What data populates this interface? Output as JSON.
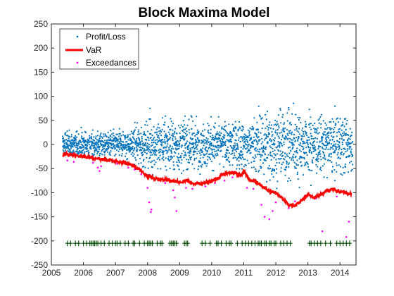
{
  "chart_data": {
    "type": "scatter",
    "title": "Block Maxima Model",
    "xlabel": "",
    "ylabel": "",
    "xlim": [
      2005,
      2014.5
    ],
    "ylim": [
      -250,
      250
    ],
    "x_ticks": [
      "2005",
      "2006",
      "2007",
      "2008",
      "2009",
      "2010",
      "2011",
      "2012",
      "2013",
      "2014"
    ],
    "y_ticks": [
      "250",
      "200",
      "150",
      "100",
      "50",
      "0",
      "-50",
      "-100",
      "-150",
      "-200",
      "-250"
    ],
    "grid": false,
    "legend_position": "top-left",
    "legend": [
      "Profit/Loss",
      "VaR",
      "Exceedances"
    ],
    "colors": {
      "profit_loss": "#0072bd",
      "var": "#ff0000",
      "exceedances": "#ff00ff",
      "exceedance_markers": "#004d00"
    },
    "series": [
      {
        "name": "VaR",
        "type": "line",
        "x": [
          2005.35,
          2005.5,
          2005.7,
          2005.9,
          2006.1,
          2006.3,
          2006.5,
          2006.7,
          2006.9,
          2007.1,
          2007.3,
          2007.5,
          2007.7,
          2007.85,
          2008.0,
          2008.2,
          2008.4,
          2008.6,
          2008.8,
          2009.0,
          2009.2,
          2009.4,
          2009.6,
          2009.8,
          2010.0,
          2010.2,
          2010.3,
          2010.5,
          2010.7,
          2010.9,
          2011.0,
          2011.2,
          2011.4,
          2011.6,
          2011.8,
          2012.0,
          2012.2,
          2012.4,
          2012.6,
          2012.8,
          2013.0,
          2013.2,
          2013.4,
          2013.6,
          2013.8,
          2014.0,
          2014.2,
          2014.35
        ],
        "y": [
          -22,
          -20,
          -22,
          -24,
          -26,
          -28,
          -30,
          -32,
          -34,
          -36,
          -38,
          -42,
          -50,
          -58,
          -66,
          -70,
          -73,
          -72,
          -76,
          -78,
          -74,
          -80,
          -82,
          -79,
          -76,
          -70,
          -63,
          -60,
          -58,
          -64,
          -55,
          -74,
          -78,
          -88,
          -96,
          -100,
          -112,
          -126,
          -128,
          -116,
          -104,
          -110,
          -104,
          -96,
          -93,
          -98,
          -100,
          -102
        ]
      },
      {
        "name": "Exceedances",
        "type": "scatter",
        "x": [
          2005.5,
          2005.7,
          2006.3,
          2006.45,
          2006.5,
          2006.55,
          2007.05,
          2007.4,
          2007.6,
          2007.8,
          2008.0,
          2008.05,
          2008.1,
          2008.12,
          2008.55,
          2008.8,
          2008.85,
          2008.9,
          2009.2,
          2009.4,
          2009.8,
          2010.1,
          2010.4,
          2010.65,
          2010.9,
          2011.1,
          2011.3,
          2011.55,
          2011.65,
          2011.8,
          2011.9,
          2012.0,
          2012.4,
          2012.6,
          2013.25,
          2013.45,
          2013.9,
          2014.2,
          2014.28
        ],
        "y": [
          -33,
          -36,
          -38,
          -48,
          -55,
          -45,
          -40,
          -48,
          -52,
          -62,
          -90,
          -120,
          -140,
          -135,
          -80,
          -95,
          -110,
          -138,
          -90,
          -92,
          -87,
          -80,
          -75,
          -68,
          -66,
          -90,
          -92,
          -125,
          -150,
          -155,
          -138,
          -120,
          -132,
          -118,
          -112,
          -180,
          -108,
          -192,
          -160
        ]
      },
      {
        "name": "Exceedance markers",
        "type": "markers",
        "y": -205,
        "x": [
          2005.5,
          2005.6,
          2005.75,
          2005.85,
          2006.0,
          2006.1,
          2006.2,
          2006.25,
          2006.3,
          2006.35,
          2006.4,
          2006.45,
          2006.55,
          2006.65,
          2006.8,
          2006.9,
          2007.0,
          2007.05,
          2007.15,
          2007.3,
          2007.4,
          2007.55,
          2007.6,
          2007.75,
          2007.9,
          2008.0,
          2008.05,
          2008.1,
          2008.15,
          2008.3,
          2008.4,
          2008.45,
          2008.7,
          2008.75,
          2008.8,
          2008.85,
          2008.9,
          2009.15,
          2009.2,
          2009.25,
          2009.7,
          2009.8,
          2009.95,
          2010.15,
          2010.2,
          2010.3,
          2010.45,
          2010.55,
          2010.6,
          2010.8,
          2010.95,
          2011.05,
          2011.15,
          2011.25,
          2011.35,
          2011.45,
          2011.5,
          2011.55,
          2011.65,
          2011.7,
          2011.8,
          2011.85,
          2011.95,
          2012.0,
          2012.15,
          2012.25,
          2012.35,
          2012.45,
          2013.05,
          2013.1,
          2013.2,
          2013.3,
          2013.4,
          2013.55,
          2013.7,
          2013.9,
          2014.0,
          2014.1,
          2014.2,
          2014.3
        ]
      }
    ]
  }
}
